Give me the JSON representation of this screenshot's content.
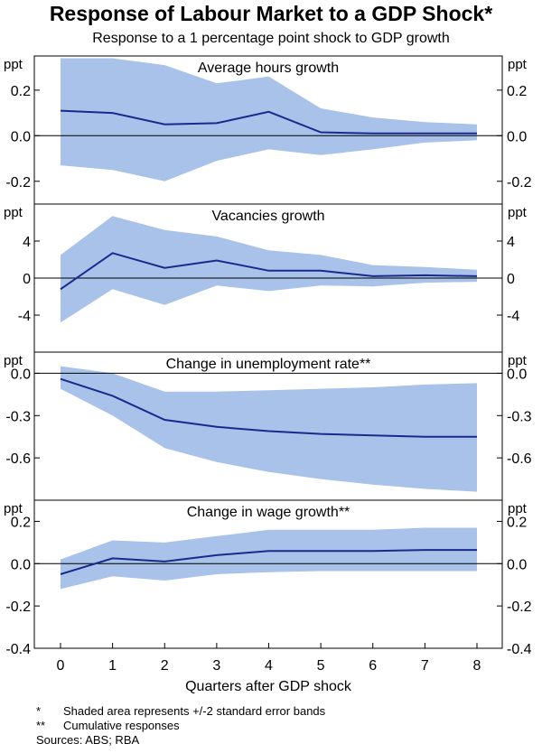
{
  "title": "Response of Labour Market to a GDP Shock*",
  "subtitle": "Response to a 1 percentage point shock to GDP growth",
  "colors": {
    "band": "#a9c2ea",
    "line": "#1a2a8c",
    "frame": "#000000"
  },
  "chart_data": {
    "type": "line",
    "xlabel": "Quarters after GDP shock",
    "x": [
      0,
      1,
      2,
      3,
      4,
      5,
      6,
      7,
      8
    ],
    "xticks": [
      "0",
      "1",
      "2",
      "3",
      "4",
      "5",
      "6",
      "7",
      "8"
    ],
    "panels": [
      {
        "title": "Average hours growth",
        "unit": "ppt",
        "ylim": [
          -0.3,
          0.35
        ],
        "yticks": [
          "0.2",
          "0.0",
          "-0.2"
        ],
        "ytick_values": [
          0.2,
          0.0,
          -0.2
        ],
        "series": [
          {
            "values": [
              0.11,
              0.1,
              0.05,
              0.055,
              0.105,
              0.015,
              0.01,
              0.01,
              0.01
            ]
          }
        ],
        "band": {
          "upper": [
            0.34,
            0.34,
            0.31,
            0.23,
            0.26,
            0.12,
            0.08,
            0.06,
            0.05
          ],
          "lower": [
            -0.13,
            -0.15,
            -0.2,
            -0.11,
            -0.06,
            -0.085,
            -0.06,
            -0.03,
            -0.02
          ]
        }
      },
      {
        "title": "Vacancies growth",
        "unit": "ppt",
        "ylim": [
          -8,
          8
        ],
        "yticks": [
          "4",
          "0",
          "-4"
        ],
        "ytick_values": [
          4,
          0,
          -4
        ],
        "series": [
          {
            "values": [
              -1.2,
              2.7,
              1.1,
              1.9,
              0.8,
              0.8,
              0.2,
              0.3,
              0.2
            ]
          }
        ],
        "band": {
          "upper": [
            2.5,
            6.7,
            5.2,
            4.5,
            3.0,
            2.5,
            1.4,
            1.2,
            0.9
          ],
          "lower": [
            -4.8,
            -1.2,
            -2.9,
            -0.8,
            -1.4,
            -0.8,
            -0.9,
            -0.5,
            -0.4
          ]
        }
      },
      {
        "title": "Change in unemployment rate**",
        "unit": "ppt",
        "ylim": [
          -0.9,
          0.15
        ],
        "yticks": [
          "0.0",
          "-0.3",
          "-0.6"
        ],
        "ytick_values": [
          0.0,
          -0.3,
          -0.6
        ],
        "series": [
          {
            "values": [
              -0.04,
              -0.16,
              -0.33,
              -0.38,
              -0.41,
              -0.43,
              -0.44,
              -0.45,
              -0.45
            ]
          }
        ],
        "band": {
          "upper": [
            0.05,
            0.0,
            -0.13,
            -0.13,
            -0.12,
            -0.11,
            -0.1,
            -0.08,
            -0.07
          ],
          "lower": [
            -0.11,
            -0.3,
            -0.53,
            -0.63,
            -0.7,
            -0.75,
            -0.79,
            -0.82,
            -0.84
          ]
        }
      },
      {
        "title": "Change in wage growth**",
        "unit": "ppt",
        "ylim": [
          -0.4,
          0.3
        ],
        "yticks": [
          "0.2",
          "0.0",
          "-0.2",
          "-0.4"
        ],
        "ytick_values": [
          0.2,
          0.0,
          -0.2,
          -0.4
        ],
        "series": [
          {
            "values": [
              -0.05,
              0.025,
              0.01,
              0.04,
              0.06,
              0.06,
              0.06,
              0.065,
              0.065
            ]
          }
        ],
        "band": {
          "upper": [
            0.02,
            0.11,
            0.1,
            0.13,
            0.16,
            0.16,
            0.16,
            0.17,
            0.17
          ],
          "lower": [
            -0.12,
            -0.06,
            -0.08,
            -0.05,
            -0.04,
            -0.035,
            -0.035,
            -0.035,
            -0.035
          ]
        }
      }
    ]
  },
  "notes": [
    {
      "mark": "*",
      "text": "Shaded area represents +/-2 standard error bands"
    },
    {
      "mark": "**",
      "text": "Cumulative responses"
    }
  ],
  "sources": "Sources: ABS; RBA"
}
